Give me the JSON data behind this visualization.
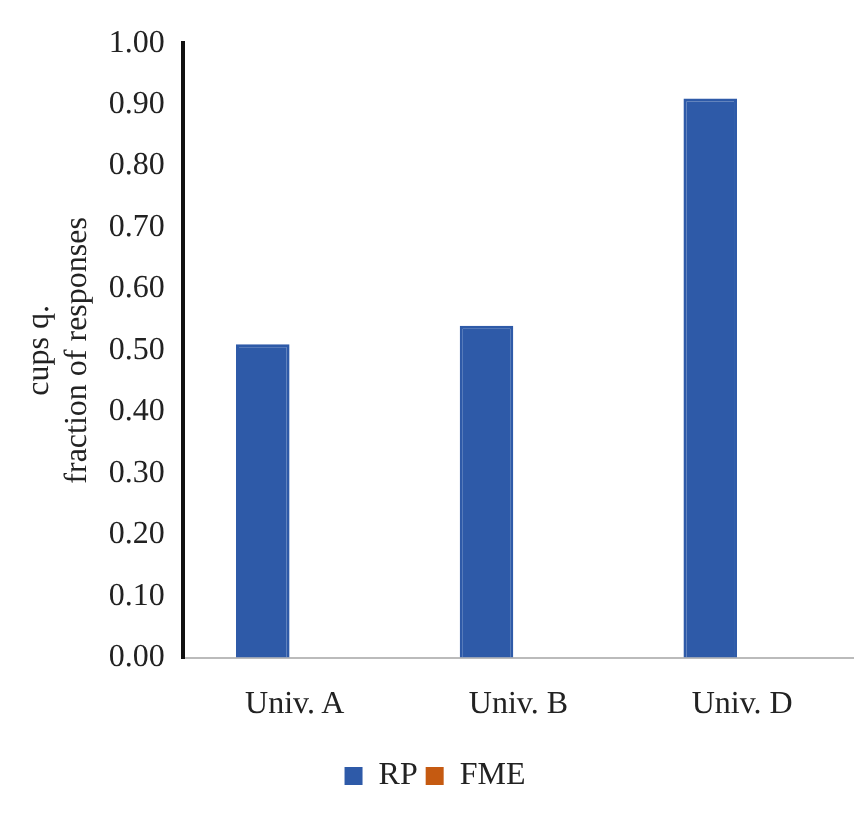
{
  "chart_data": {
    "type": "bar",
    "ylabel": "cups q.\nfraction of responses",
    "categories": [
      "Univ. A",
      "Univ. B",
      "Univ. D"
    ],
    "series": [
      {
        "name": "RP",
        "color": "#2e5aa8",
        "values": [
          0.51,
          0.54,
          0.91
        ]
      },
      {
        "name": "FME",
        "color": "#c55a11",
        "values": [
          null,
          null,
          null
        ]
      }
    ],
    "ylim": [
      0,
      1
    ],
    "yticks": [
      {
        "value": 0,
        "label": "0.00"
      },
      {
        "value": 0.1,
        "label": "0.10"
      },
      {
        "value": 0.2,
        "label": "0.20"
      },
      {
        "value": 0.3,
        "label": "0.30"
      },
      {
        "value": 0.4,
        "label": "0.40"
      },
      {
        "value": 0.5,
        "label": "0.50"
      },
      {
        "value": 0.6,
        "label": "0.60"
      },
      {
        "value": 0.7,
        "label": "0.70"
      },
      {
        "value": 0.8,
        "label": "0.80"
      },
      {
        "value": 0.9,
        "label": "0.90"
      },
      {
        "value": 1,
        "label": "1.00"
      }
    ],
    "grid": false,
    "legend": "bottom"
  }
}
